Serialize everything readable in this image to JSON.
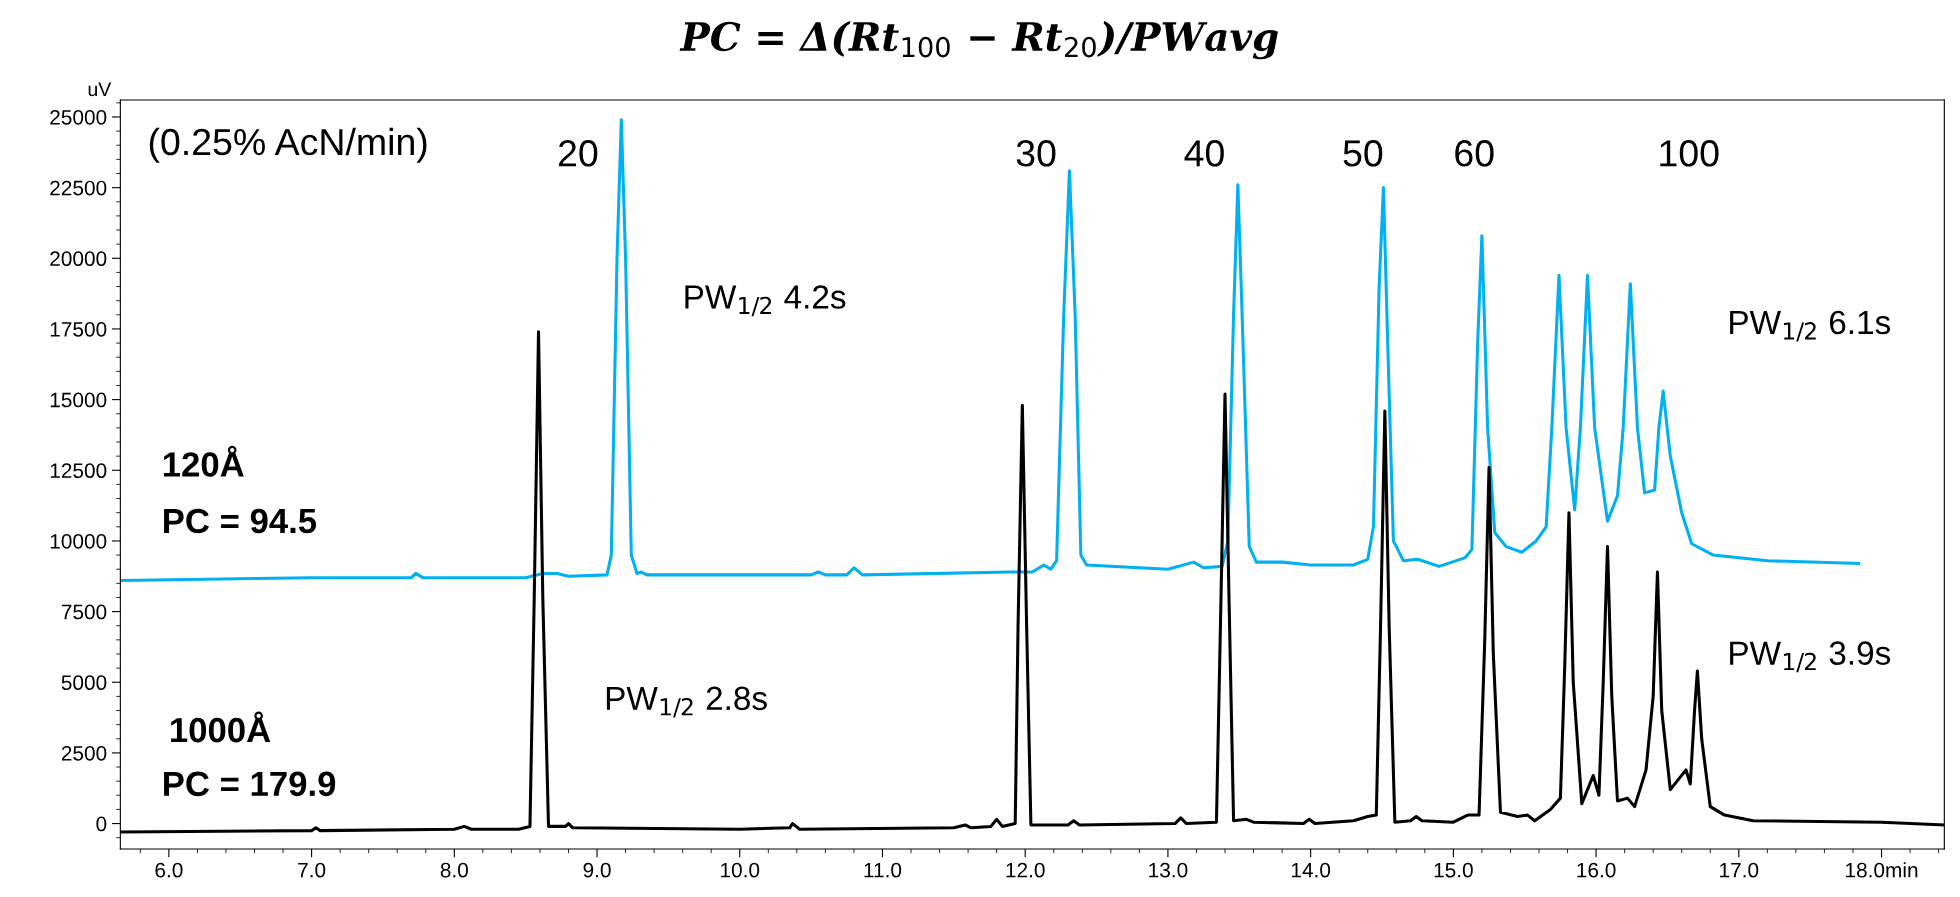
{
  "chart_data": {
    "type": "line",
    "title": "PC = Δ(Rt$_{100}$ − Rt$_{20}$)/PWavg",
    "ylabel": "uV",
    "xlim": [
      5.66,
      18.44
    ],
    "ylim": [
      -900,
      25600
    ],
    "xticks": [
      {
        "value": 6,
        "label": "6.0"
      },
      {
        "value": 7,
        "label": "7.0"
      },
      {
        "value": 8,
        "label": "8.0"
      },
      {
        "value": 9,
        "label": "9.0"
      },
      {
        "value": 10,
        "label": "10.0"
      },
      {
        "value": 11,
        "label": "11.0"
      },
      {
        "value": 12,
        "label": "12.0"
      },
      {
        "value": 13,
        "label": "13.0"
      },
      {
        "value": 14,
        "label": "14.0"
      },
      {
        "value": 15,
        "label": "15.0"
      },
      {
        "value": 16,
        "label": "16.0"
      },
      {
        "value": 17,
        "label": "17.0"
      },
      {
        "value": 18,
        "label": "18.0min"
      }
    ],
    "yticks": [
      0,
      2500,
      5000,
      7500,
      10000,
      12500,
      15000,
      17500,
      20000,
      22500,
      25000
    ],
    "grid": false,
    "legend": false,
    "marker": "none",
    "line_style": "solid",
    "series": [
      {
        "color": "#00b0f0",
        "x": [
          5.66,
          7.0,
          7.7,
          7.73,
          7.78,
          8.5,
          8.62,
          8.72,
          8.8,
          9.07,
          9.1,
          9.14,
          9.17,
          9.2,
          9.24,
          9.28,
          9.31,
          9.35,
          10.5,
          10.55,
          10.6,
          10.75,
          10.8,
          10.86,
          11.9,
          12.05,
          12.13,
          12.18,
          12.22,
          12.27,
          12.31,
          12.35,
          12.39,
          12.43,
          13.0,
          13.18,
          13.25,
          13.38,
          13.42,
          13.46,
          13.49,
          13.52,
          13.57,
          13.62,
          13.8,
          14.0,
          14.3,
          14.4,
          14.44,
          14.48,
          14.51,
          14.54,
          14.58,
          14.65,
          14.75,
          14.9,
          15.08,
          15.13,
          15.17,
          15.2,
          15.24,
          15.29,
          15.37,
          15.48,
          15.58,
          15.65,
          15.69,
          15.74,
          15.79,
          15.85,
          15.89,
          15.94,
          15.99,
          16.08,
          16.15,
          16.19,
          16.24,
          16.29,
          16.34,
          16.41,
          16.44,
          16.47,
          16.52,
          16.6,
          16.67,
          16.82,
          17.2,
          17.84
        ],
        "values": [
          8600,
          8700,
          8700,
          8850,
          8700,
          8700,
          8850,
          8850,
          8750,
          8800,
          9500,
          20000,
          24900,
          20000,
          9500,
          8850,
          8900,
          8800,
          8800,
          8900,
          8800,
          8800,
          9050,
          8800,
          8900,
          8900,
          9150,
          9000,
          9300,
          18000,
          23100,
          18000,
          9500,
          9150,
          9000,
          9250,
          9050,
          9100,
          10000,
          18000,
          22600,
          18000,
          9800,
          9250,
          9250,
          9150,
          9150,
          9350,
          10500,
          19000,
          22500,
          17000,
          10000,
          9300,
          9350,
          9100,
          9400,
          9700,
          17000,
          20800,
          14000,
          10300,
          9800,
          9600,
          10000,
          10500,
          14000,
          19400,
          14000,
          11100,
          14000,
          19400,
          14000,
          10700,
          11600,
          14000,
          19100,
          14000,
          11700,
          11800,
          14000,
          15300,
          13000,
          11000,
          9900,
          9500,
          9300,
          9200
        ]
      },
      {
        "color": "#000000",
        "x": [
          5.66,
          7.0,
          7.03,
          7.06,
          8.0,
          8.07,
          8.12,
          8.45,
          8.53,
          8.56,
          8.59,
          8.62,
          8.66,
          8.78,
          8.8,
          8.83,
          10.0,
          10.35,
          10.37,
          10.42,
          11.5,
          11.58,
          11.62,
          11.76,
          11.8,
          11.84,
          11.93,
          11.95,
          11.98,
          12.01,
          12.04,
          12.3,
          12.34,
          12.38,
          13.05,
          13.09,
          13.13,
          13.34,
          13.37,
          13.4,
          13.43,
          13.46,
          13.55,
          13.6,
          13.95,
          13.99,
          14.03,
          14.3,
          14.4,
          14.46,
          14.49,
          14.52,
          14.55,
          14.59,
          14.7,
          14.74,
          14.78,
          15.0,
          15.1,
          15.18,
          15.22,
          15.25,
          15.28,
          15.33,
          15.45,
          15.52,
          15.57,
          15.68,
          15.75,
          15.78,
          15.81,
          15.84,
          15.9,
          15.98,
          16.02,
          16.05,
          16.08,
          16.11,
          16.15,
          16.22,
          16.27,
          16.35,
          16.4,
          16.43,
          16.46,
          16.52,
          16.63,
          16.66,
          16.69,
          16.71,
          16.74,
          16.8,
          16.9,
          17.1,
          18.0,
          18.44
        ],
        "values": [
          -300,
          -250,
          -150,
          -250,
          -200,
          -100,
          -200,
          -200,
          -100,
          8000,
          17400,
          8000,
          -100,
          -100,
          0,
          -150,
          -200,
          -150,
          0,
          -200,
          -150,
          -50,
          -150,
          -100,
          150,
          -100,
          0,
          7000,
          14800,
          7000,
          -50,
          -50,
          100,
          -50,
          0,
          200,
          0,
          50,
          7500,
          15200,
          7500,
          100,
          150,
          50,
          0,
          150,
          0,
          100,
          250,
          300,
          7000,
          14600,
          7000,
          50,
          100,
          250,
          100,
          50,
          300,
          300,
          6500,
          12600,
          6000,
          400,
          250,
          300,
          100,
          500,
          900,
          5500,
          11000,
          5000,
          700,
          1700,
          1000,
          5000,
          9800,
          4500,
          800,
          900,
          600,
          1900,
          4500,
          8900,
          4000,
          1200,
          1900,
          1400,
          4000,
          5400,
          3000,
          600,
          300,
          100,
          50,
          -50
        ]
      }
    ],
    "annotations": [
      "(0.25% AcN/min)",
      "20",
      "30",
      "40",
      "50",
      "60",
      "100",
      "120Å",
      "PC = 94.5",
      "1000Å",
      "PC = 179.9",
      "PW$_{1/2}$ 4.2s",
      "PW$_{1/2}$ 2.8s",
      "PW$_{1/2}$ 6.1s",
      "PW$_{1/2}$ 3.9s"
    ]
  }
}
